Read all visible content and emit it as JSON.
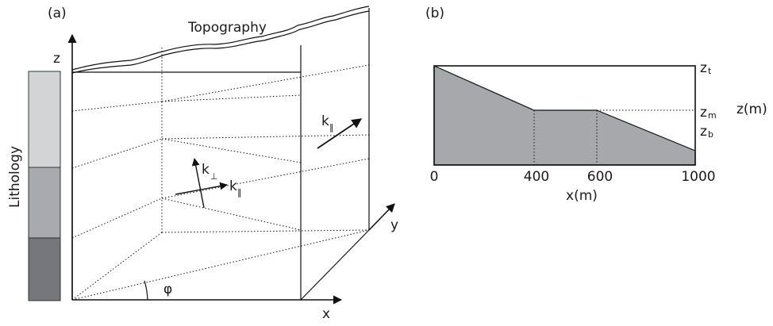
{
  "panel_a": {
    "label": "(a)",
    "topography": "Topography",
    "lithology": "Lithology",
    "axis_z": "z",
    "axis_x": "x",
    "axis_y": "y",
    "angle": "φ",
    "k_parallel": "k",
    "k_parallel_sub": "‖",
    "k_perp": "k",
    "k_perp_sub": "⊥",
    "k_parallel_side": "k",
    "k_parallel_side_sub": "‖",
    "lithology_colors": [
      "#d3d4d6",
      "#a9aaad",
      "#76777b"
    ]
  },
  "panel_b": {
    "label": "(b)",
    "ticks": [
      "0",
      "400",
      "600",
      "1000"
    ],
    "xlabel": "x(m)",
    "ylabel": "z(m)",
    "z_top": "z",
    "z_top_sub": "t",
    "z_mid": "z",
    "z_mid_sub": "m",
    "z_bot": "z",
    "z_bot_sub": "b",
    "fill_color": "#a7a8ab"
  }
}
